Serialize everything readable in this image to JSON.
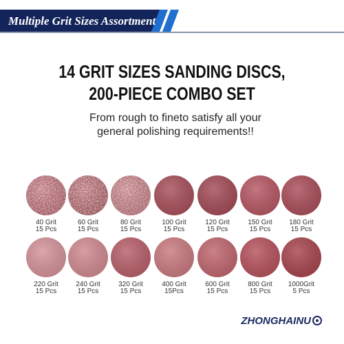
{
  "banner": {
    "title": "Multiple Grit Sizes Assortment"
  },
  "headline": {
    "line1": "14 GRIT SIZES SANDING DISCS,",
    "line2": "200-PIECE COMBO SET"
  },
  "subtitle": {
    "line1": "From rough to fineto satisfy all your",
    "line2": "general polishing requirements!!"
  },
  "discs": [
    {
      "label": "40 Grit",
      "count": "15 Pcs",
      "color": "#b8606c"
    },
    {
      "label": "60 Grit",
      "count": "15 Pcs",
      "color": "#b05a64"
    },
    {
      "label": "80 Grit",
      "count": "15 Pcs",
      "color": "#c07078"
    },
    {
      "label": "100 Grit",
      "count": "15 Pcs",
      "color": "#a8505a"
    },
    {
      "label": "120 Grit",
      "count": "15 Pcs",
      "color": "#a34c57"
    },
    {
      "label": "150 Grit",
      "count": "15 Pcs",
      "color": "#b65864"
    },
    {
      "label": "180 Grit",
      "count": "15 Pcs",
      "color": "#aa4f5a"
    },
    {
      "label": "220 Grit",
      "count": "15 Pcs",
      "color": "#d4939a"
    },
    {
      "label": "240 Grit",
      "count": "15 Pcs",
      "color": "#cf8a90"
    },
    {
      "label": "320 Grit",
      "count": "15 Pcs",
      "color": "#b8606a"
    },
    {
      "label": "400 Grit",
      "count": "15Pcs",
      "color": "#c97a80"
    },
    {
      "label": "600 Grit",
      "count": "15 Pcs",
      "color": "#c0676f"
    },
    {
      "label": "800 Grit",
      "count": "15 Pcs",
      "color": "#b6535d"
    },
    {
      "label": "1000Grit",
      "count": "5 Pcs",
      "color": "#a8464f"
    }
  ],
  "brand": {
    "name": "ZHONGHAINU"
  }
}
